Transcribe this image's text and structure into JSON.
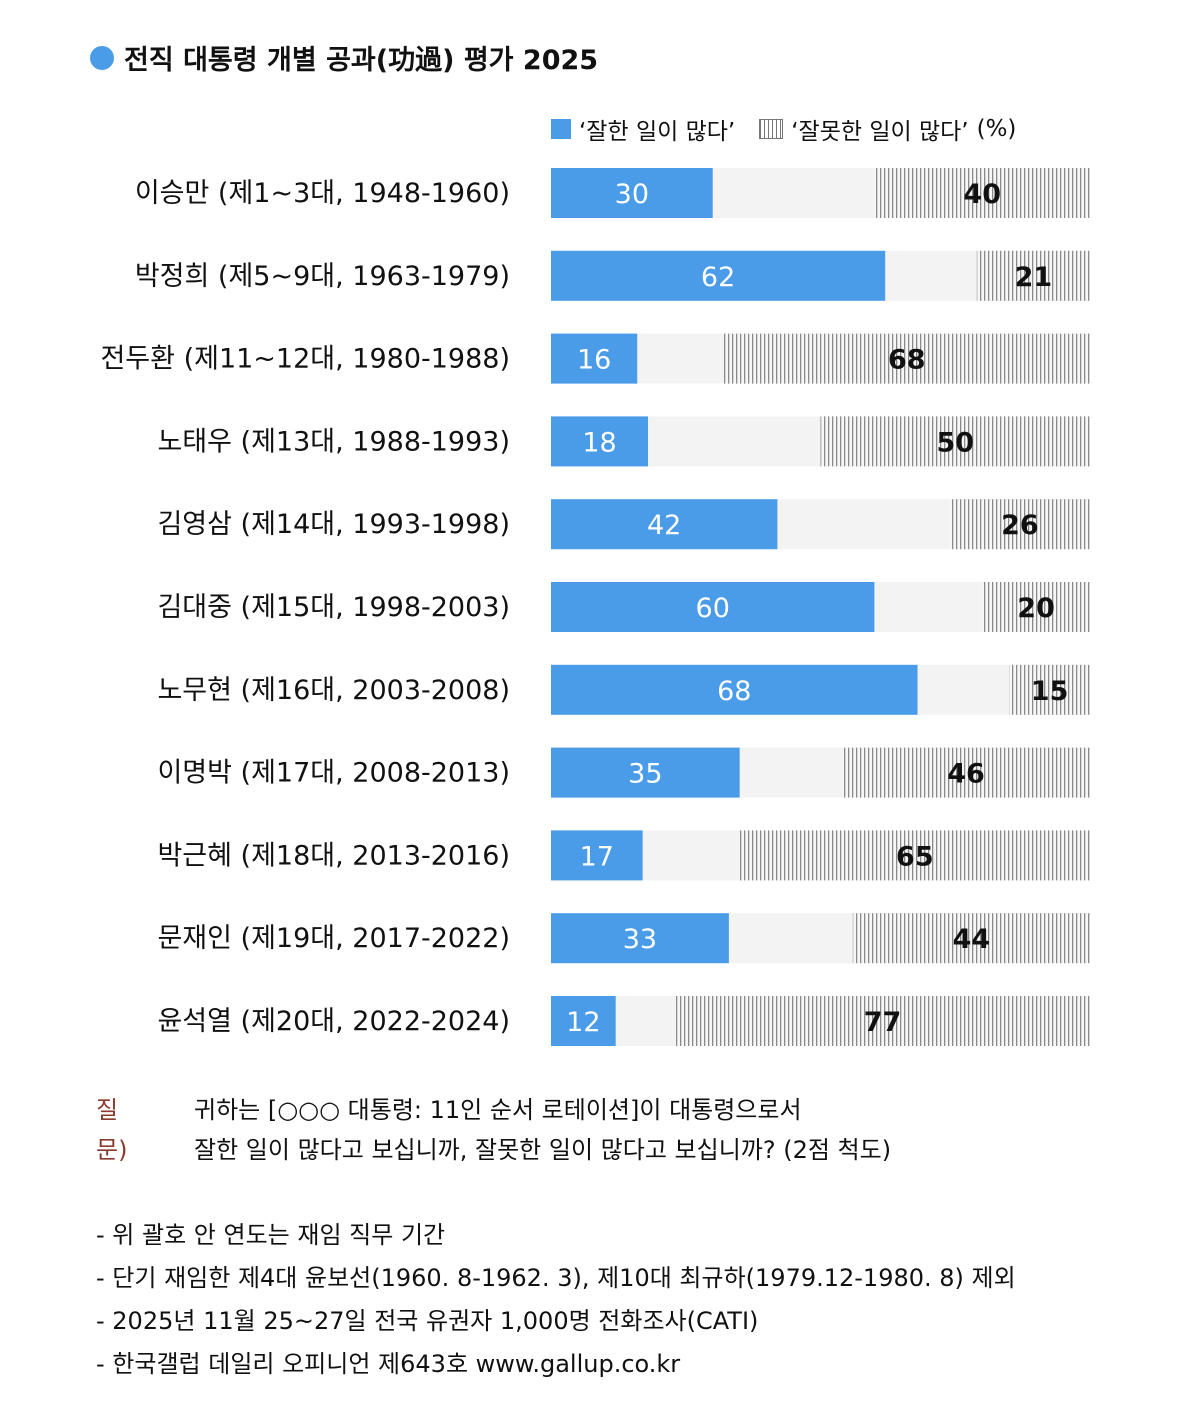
{
  "title": "전직 대통령 개별 공과(功過) 평가 2025",
  "legend": {
    "good": "‘잘한 일이 많다’",
    "bad": "‘잘못한 일이 많다’",
    "unit": "(%)"
  },
  "colors": {
    "good": "#4a9be8",
    "bar_bg": "#f3f3f3",
    "hatch": "#8a8a8a"
  },
  "chart_data": {
    "type": "bar",
    "orientation": "horizontal",
    "stacked": "diverging-ends",
    "categories": [
      "이승만 (제1~3대, 1948-1960)",
      "박정희 (제5~9대, 1963-1979)",
      "전두환 (제11~12대, 1980-1988)",
      "노태우 (제13대, 1988-1993)",
      "김영삼 (제14대, 1993-1998)",
      "김대중 (제15대, 1998-2003)",
      "노무현 (제16대, 2003-2008)",
      "이명박 (제17대, 2008-2013)",
      "박근혜 (제18대, 2013-2016)",
      "문재인 (제19대, 2017-2022)",
      "윤석열 (제20대, 2022-2024)"
    ],
    "series": [
      {
        "name": "‘잘한 일이 많다’",
        "values": [
          30,
          62,
          16,
          18,
          42,
          60,
          68,
          35,
          17,
          33,
          12
        ]
      },
      {
        "name": "‘잘못한 일이 많다’",
        "values": [
          40,
          21,
          68,
          50,
          26,
          20,
          15,
          46,
          65,
          44,
          77
        ]
      }
    ],
    "xlim": [
      0,
      100
    ],
    "unit": "%"
  },
  "question": {
    "label": "질문)",
    "lines": [
      "귀하는 [○○○ 대통령: 11인 순서 로테이션]이 대통령으로서",
      "잘한 일이 많다고 보십니까, 잘못한 일이 많다고 보십니까? (2점 척도)"
    ]
  },
  "notes": [
    "- 위 괄호 안 연도는 재임 직무 기간",
    "- 단기 재임한 제4대 윤보선(1960. 8-1962. 3), 제10대 최규하(1979.12-1980. 8) 제외",
    "- 2025년 11월 25~27일 전국 유권자 1,000명 전화조사(CATI)",
    "- 한국갤럽 데일리 오피니언 제643호 www.gallup.co.kr"
  ]
}
